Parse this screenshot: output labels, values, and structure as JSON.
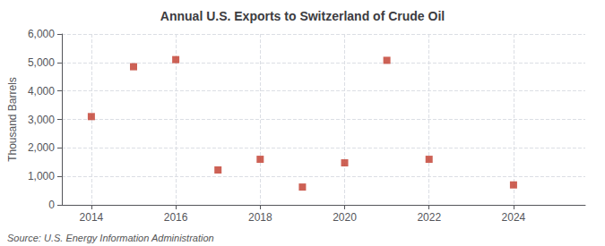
{
  "chart_data": {
    "type": "scatter",
    "title": "Annual U.S. Exports to Switzerland of Crude Oil",
    "ylabel": "Thousand Barrels",
    "annotation": "Source: U.S. Energy Information Administration",
    "x": [
      2014,
      2015,
      2016,
      2017,
      2018,
      2019,
      2020,
      2021,
      2022,
      2024
    ],
    "values": [
      3100,
      4850,
      5100,
      1225,
      1600,
      625,
      1475,
      5075,
      1600,
      700
    ],
    "color": "#c0392b",
    "marker": "square",
    "xlim": [
      2013.3,
      2025.7
    ],
    "xticks": [
      2014,
      2016,
      2018,
      2020,
      2022,
      2024
    ],
    "ylim": [
      0,
      6000
    ],
    "yticks": [
      0,
      {
        "value": 1000,
        "label": "1,000"
      },
      {
        "value": 2000,
        "label": "2,000"
      },
      {
        "value": 3000,
        "label": "3,000"
      },
      {
        "value": 4000,
        "label": "4,000"
      },
      {
        "value": 5000,
        "label": "5,000"
      },
      {
        "value": 6000,
        "label": "6,000"
      }
    ],
    "grid": true
  }
}
